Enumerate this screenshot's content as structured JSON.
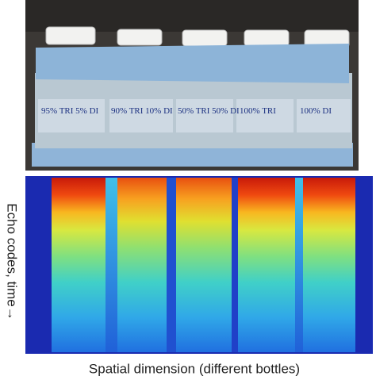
{
  "photo": {
    "bottle_labels": [
      "95% TRI 5% DI",
      "90% TRI 10% DI",
      "50% TRI 50% DI",
      "100% TRI",
      "100% DI"
    ]
  },
  "heatmap": {
    "y_axis_label": "Echo codes, time→",
    "x_axis_label": "Spatial dimension (different bottles)"
  }
}
